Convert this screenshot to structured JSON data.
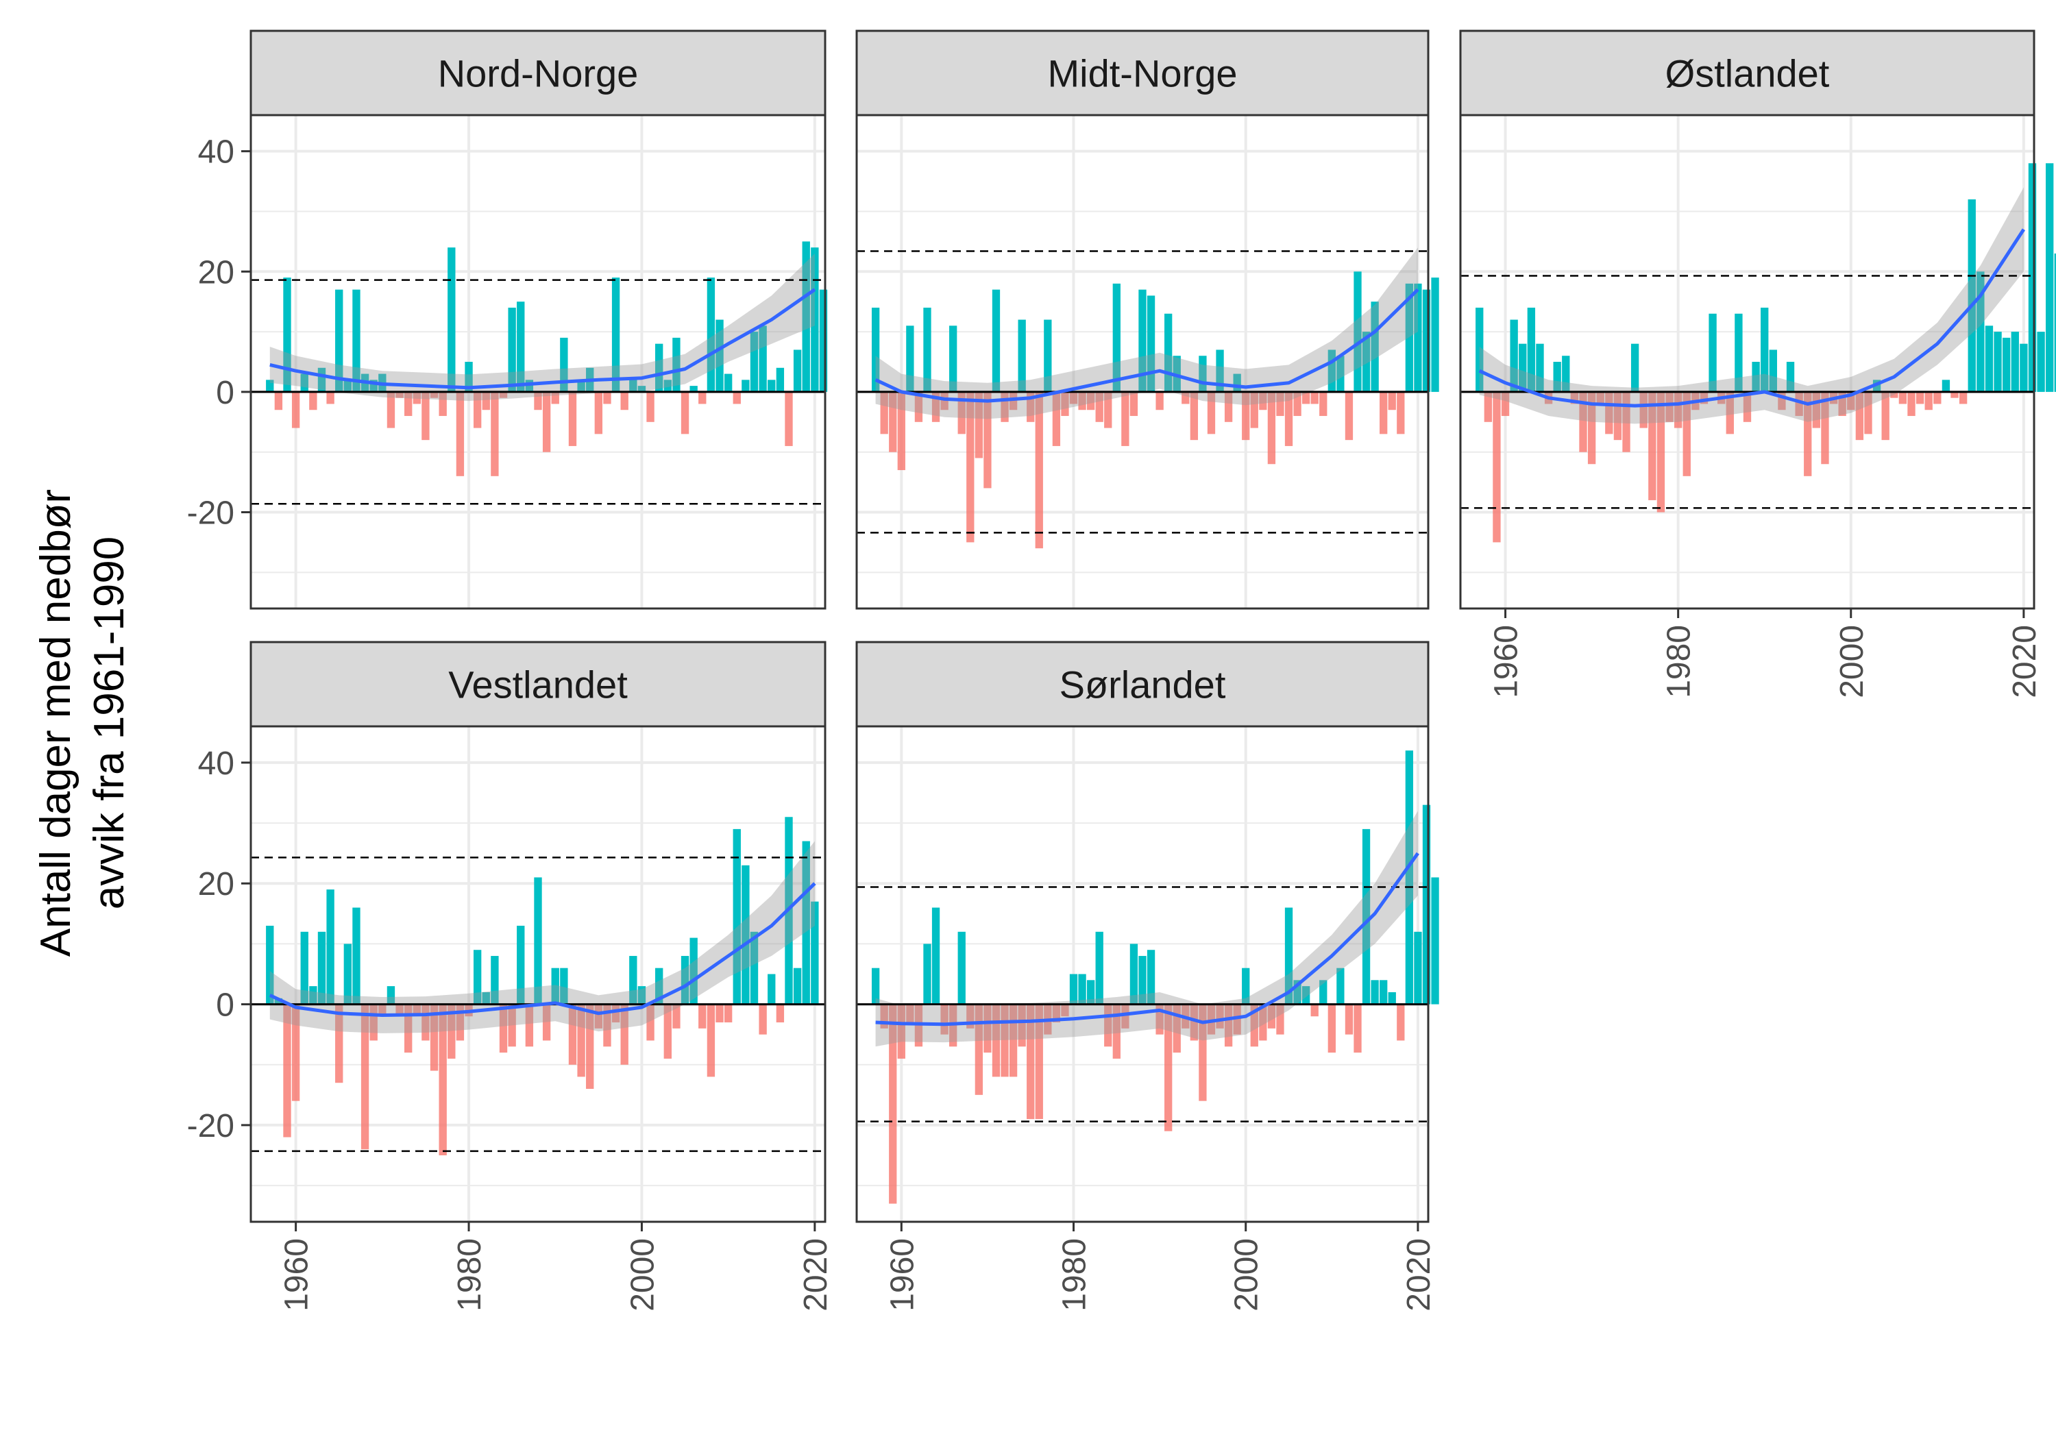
{
  "figure": {
    "y_axis_label": [
      "Antall dager med nedbør",
      "avvik fra 1961-1990"
    ],
    "colors": {
      "positive": "#00BFC4",
      "negative": "#F8766D",
      "smooth": "#3366FF",
      "ribbon": "#999999",
      "strip_fill": "#D9D9D9",
      "grid": "#EBEBEB",
      "panel_border": "#333333"
    }
  },
  "chart_data": [
    {
      "type": "bar",
      "title": "Nord-Norge",
      "x_start": 1957,
      "x_ticks": [
        1960,
        1980,
        2000,
        2020
      ],
      "y_ticks": [
        -20,
        0,
        20,
        40
      ],
      "ylim": [
        -36,
        46
      ],
      "xlim": [
        1954.8,
        2021.2
      ],
      "threshold": 18.6,
      "values": [
        2,
        -3,
        19,
        -6,
        3,
        -3,
        4,
        -2,
        17,
        2,
        17,
        3,
        2,
        3,
        -6,
        -1,
        -4,
        -2,
        -8,
        -1,
        -4,
        24,
        -14,
        5,
        -6,
        -3,
        -14,
        -1,
        14,
        15,
        2,
        -3,
        -10,
        -2,
        9,
        -9,
        2,
        4,
        -7,
        -2,
        19,
        -3,
        2,
        1,
        -5,
        8,
        2,
        9,
        -7,
        1,
        -2,
        19,
        12,
        3,
        -2,
        2,
        10,
        11,
        2,
        4,
        -9,
        7,
        25,
        24,
        17
      ],
      "smooth": {
        "x": [
          1957,
          1960,
          1965,
          1970,
          1975,
          1980,
          1985,
          1990,
          1995,
          2000,
          2005,
          2010,
          2015,
          2020
        ],
        "y": [
          4.5,
          3.5,
          2.2,
          1.3,
          1.0,
          0.7,
          1.1,
          1.6,
          2.0,
          2.3,
          3.8,
          8.0,
          12.0,
          17.0
        ],
        "band": [
          3.0,
          2.5,
          2.3,
          2.2,
          2.2,
          2.2,
          2.2,
          2.2,
          2.2,
          2.3,
          2.5,
          3.0,
          4.0,
          6.0
        ]
      }
    },
    {
      "type": "bar",
      "title": "Midt-Norge",
      "x_start": 1957,
      "x_ticks": [
        1960,
        1980,
        2000,
        2020
      ],
      "y_ticks": [
        -20,
        0,
        20,
        40
      ],
      "ylim": [
        -36,
        46
      ],
      "xlim": [
        1954.8,
        2021.2
      ],
      "threshold": 23.4,
      "values": [
        14,
        -7,
        -10,
        -13,
        11,
        -5,
        14,
        -5,
        -3,
        11,
        -7,
        -25,
        -11,
        -16,
        17,
        -5,
        -3,
        12,
        -5,
        -26,
        12,
        -9,
        -4,
        -2,
        -3,
        -3,
        -5,
        -6,
        18,
        -9,
        -4,
        17,
        16,
        -3,
        13,
        6,
        -2,
        -8,
        6,
        -7,
        7,
        -5,
        3,
        -8,
        -6,
        -3,
        -12,
        -4,
        -9,
        -4,
        -2,
        -2,
        -4,
        7,
        6,
        -8,
        20,
        10,
        15,
        -7,
        -3,
        -7,
        18,
        18,
        17,
        19
      ],
      "smooth": {
        "x": [
          1957,
          1960,
          1965,
          1970,
          1975,
          1980,
          1985,
          1990,
          1995,
          2000,
          2005,
          2010,
          2015,
          2020
        ],
        "y": [
          2.0,
          0.0,
          -1.2,
          -1.5,
          -1.0,
          0.5,
          2.0,
          3.5,
          1.5,
          0.8,
          1.5,
          5.0,
          10.0,
          17.0
        ],
        "band": [
          4.0,
          3.0,
          3.0,
          3.0,
          3.0,
          3.0,
          3.0,
          3.0,
          3.0,
          3.0,
          3.0,
          3.5,
          4.5,
          7.0
        ]
      }
    },
    {
      "type": "bar",
      "title": "Østlandet",
      "x_start": 1957,
      "x_ticks": [
        1960,
        1980,
        2000,
        2020
      ],
      "y_ticks": [
        -20,
        0,
        20,
        40
      ],
      "ylim": [
        -36,
        46
      ],
      "xlim": [
        1954.8,
        2021.2
      ],
      "threshold": 19.3,
      "values": [
        14,
        -5,
        -25,
        -4,
        12,
        8,
        14,
        8,
        -2,
        5,
        6,
        -2,
        -10,
        -12,
        -2,
        -7,
        -8,
        -10,
        8,
        -6,
        -18,
        -20,
        -5,
        -6,
        -14,
        -3,
        -2,
        13,
        -2,
        -7,
        13,
        -5,
        5,
        14,
        7,
        -3,
        5,
        -4,
        -14,
        -6,
        -12,
        -2,
        -4,
        -3,
        -8,
        -7,
        2,
        -8,
        -1,
        -2,
        -4,
        -2,
        -3,
        -2,
        2,
        -1,
        -2,
        32,
        20,
        11,
        10,
        9,
        10,
        8,
        38,
        10,
        38,
        23
      ],
      "smooth": {
        "x": [
          1957,
          1960,
          1965,
          1970,
          1975,
          1980,
          1985,
          1990,
          1995,
          2000,
          2005,
          2010,
          2015,
          2020
        ],
        "y": [
          3.5,
          1.5,
          -1.0,
          -2.0,
          -2.3,
          -2.0,
          -1.0,
          0.0,
          -2.0,
          -0.5,
          2.5,
          8.0,
          16.0,
          27.0
        ],
        "band": [
          4.0,
          3.0,
          3.0,
          3.0,
          3.0,
          3.0,
          3.0,
          3.0,
          3.0,
          3.0,
          3.0,
          3.5,
          5.0,
          7.0
        ]
      }
    },
    {
      "type": "bar",
      "title": "Vestlandet",
      "x_start": 1957,
      "x_ticks": [
        1960,
        1980,
        2000,
        2020
      ],
      "y_ticks": [
        -20,
        0,
        20,
        40
      ],
      "ylim": [
        -36,
        46
      ],
      "xlim": [
        1954.8,
        2021.2
      ],
      "threshold": 24.3,
      "values": [
        13,
        1,
        -22,
        -16,
        12,
        3,
        12,
        19,
        -13,
        10,
        16,
        -24,
        -6,
        -2,
        3,
        -2,
        -8,
        -2,
        -6,
        -11,
        -25,
        -9,
        -6,
        -2,
        9,
        2,
        8,
        -8,
        -7,
        13,
        -7,
        21,
        -6,
        6,
        6,
        -10,
        -12,
        -14,
        -4,
        -7,
        -3,
        -10,
        8,
        3,
        -6,
        6,
        -9,
        -4,
        8,
        11,
        -4,
        -12,
        -3,
        -3,
        29,
        23,
        12,
        -5,
        5,
        -3,
        31,
        6,
        27,
        17
      ],
      "smooth": {
        "x": [
          1957,
          1960,
          1965,
          1970,
          1975,
          1980,
          1985,
          1990,
          1995,
          2000,
          2005,
          2010,
          2015,
          2020
        ],
        "y": [
          1.5,
          -0.5,
          -1.5,
          -1.8,
          -1.7,
          -1.2,
          -0.5,
          0.2,
          -1.5,
          -0.5,
          3.0,
          8.0,
          13.0,
          20.0
        ],
        "band": [
          4.0,
          3.0,
          3.0,
          3.0,
          3.0,
          3.0,
          3.0,
          3.0,
          3.0,
          3.0,
          3.0,
          3.5,
          5.0,
          7.0
        ]
      }
    },
    {
      "type": "bar",
      "title": "Sørlandet",
      "x_start": 1957,
      "x_ticks": [
        1960,
        1980,
        2000,
        2020
      ],
      "y_ticks": [
        -20,
        0,
        20,
        40
      ],
      "ylim": [
        -36,
        46
      ],
      "xlim": [
        1954.8,
        2021.2
      ],
      "threshold": 19.4,
      "values": [
        6,
        -4,
        -33,
        -9,
        -3,
        -7,
        10,
        16,
        -5,
        -7,
        12,
        -4,
        -15,
        -8,
        -12,
        -12,
        -12,
        -7,
        -19,
        -19,
        -5,
        -3,
        -2,
        5,
        5,
        4,
        12,
        -7,
        -9,
        -4,
        10,
        8,
        9,
        -5,
        -21,
        -8,
        -4,
        -6,
        -16,
        -5,
        -4,
        -7,
        -5,
        6,
        -7,
        -6,
        -4,
        -5,
        16,
        4,
        3,
        -2,
        4,
        -8,
        6,
        -5,
        -8,
        29,
        4,
        4,
        2,
        -6,
        42,
        12,
        33,
        21
      ],
      "smooth": {
        "x": [
          1957,
          1960,
          1965,
          1970,
          1975,
          1980,
          1985,
          1990,
          1995,
          2000,
          2005,
          2010,
          2015,
          2020
        ],
        "y": [
          -3.0,
          -3.2,
          -3.3,
          -3.0,
          -2.8,
          -2.4,
          -1.8,
          -1.0,
          -3.0,
          -2.0,
          2.0,
          8.0,
          15.0,
          25.0
        ],
        "band": [
          4.0,
          3.0,
          3.0,
          3.0,
          3.0,
          3.0,
          3.0,
          3.0,
          3.0,
          3.0,
          3.0,
          3.5,
          5.0,
          7.0
        ]
      }
    }
  ]
}
